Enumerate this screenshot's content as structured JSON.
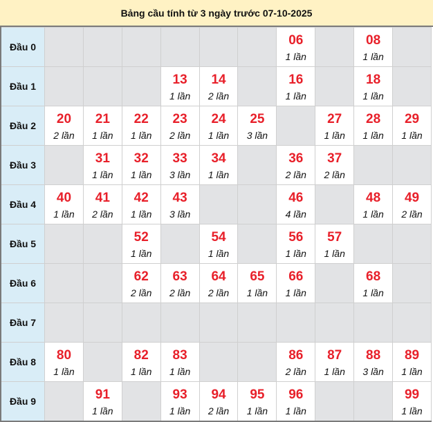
{
  "title": "Bảng cầu tính từ 3 ngày trước 07-10-2025",
  "colors": {
    "number": "#e8202a",
    "head_bg": "#d9edf7",
    "empty_bg": "#e2e3e5",
    "title_bg": "#fff2c4"
  },
  "rows": [
    {
      "label": "Đầu 0",
      "cells": [
        null,
        null,
        null,
        null,
        null,
        null,
        {
          "num": "06",
          "count": "1 lần"
        },
        null,
        {
          "num": "08",
          "count": "1 lần"
        },
        null
      ]
    },
    {
      "label": "Đầu 1",
      "cells": [
        null,
        null,
        null,
        {
          "num": "13",
          "count": "1 lần"
        },
        {
          "num": "14",
          "count": "2 lần"
        },
        null,
        {
          "num": "16",
          "count": "1 lần"
        },
        null,
        {
          "num": "18",
          "count": "1 lần"
        },
        null
      ]
    },
    {
      "label": "Đầu 2",
      "cells": [
        {
          "num": "20",
          "count": "2 lần"
        },
        {
          "num": "21",
          "count": "1 lần"
        },
        {
          "num": "22",
          "count": "1 lần"
        },
        {
          "num": "23",
          "count": "2 lần"
        },
        {
          "num": "24",
          "count": "1 lần"
        },
        {
          "num": "25",
          "count": "3 lần"
        },
        null,
        {
          "num": "27",
          "count": "1 lần"
        },
        {
          "num": "28",
          "count": "1 lần"
        },
        {
          "num": "29",
          "count": "1 lần"
        }
      ]
    },
    {
      "label": "Đầu 3",
      "cells": [
        null,
        {
          "num": "31",
          "count": "1 lần"
        },
        {
          "num": "32",
          "count": "1 lần"
        },
        {
          "num": "33",
          "count": "3 lần"
        },
        {
          "num": "34",
          "count": "1 lần"
        },
        null,
        {
          "num": "36",
          "count": "2 lần"
        },
        {
          "num": "37",
          "count": "2 lần"
        },
        null,
        null
      ]
    },
    {
      "label": "Đầu 4",
      "cells": [
        {
          "num": "40",
          "count": "1 lần"
        },
        {
          "num": "41",
          "count": "2 lần"
        },
        {
          "num": "42",
          "count": "1 lần"
        },
        {
          "num": "43",
          "count": "3 lần"
        },
        null,
        null,
        {
          "num": "46",
          "count": "4 lần"
        },
        null,
        {
          "num": "48",
          "count": "1 lần"
        },
        {
          "num": "49",
          "count": "2 lần"
        }
      ]
    },
    {
      "label": "Đầu 5",
      "cells": [
        null,
        null,
        {
          "num": "52",
          "count": "1 lần"
        },
        null,
        {
          "num": "54",
          "count": "1 lần"
        },
        null,
        {
          "num": "56",
          "count": "1 lần"
        },
        {
          "num": "57",
          "count": "1 lần"
        },
        null,
        null
      ]
    },
    {
      "label": "Đầu 6",
      "cells": [
        null,
        null,
        {
          "num": "62",
          "count": "2 lần"
        },
        {
          "num": "63",
          "count": "2 lần"
        },
        {
          "num": "64",
          "count": "2 lần"
        },
        {
          "num": "65",
          "count": "1 lần"
        },
        {
          "num": "66",
          "count": "1 lần"
        },
        null,
        {
          "num": "68",
          "count": "1 lần"
        },
        null
      ]
    },
    {
      "label": "Đầu 7",
      "cells": [
        null,
        null,
        null,
        null,
        null,
        null,
        null,
        null,
        null,
        null
      ]
    },
    {
      "label": "Đầu 8",
      "cells": [
        {
          "num": "80",
          "count": "1 lần"
        },
        null,
        {
          "num": "82",
          "count": "1 lần"
        },
        {
          "num": "83",
          "count": "1 lần"
        },
        null,
        null,
        {
          "num": "86",
          "count": "2 lần"
        },
        {
          "num": "87",
          "count": "1 lần"
        },
        {
          "num": "88",
          "count": "3 lần"
        },
        {
          "num": "89",
          "count": "1 lần"
        }
      ]
    },
    {
      "label": "Đầu 9",
      "cells": [
        null,
        {
          "num": "91",
          "count": "1 lần"
        },
        null,
        {
          "num": "93",
          "count": "1 lần"
        },
        {
          "num": "94",
          "count": "2 lần"
        },
        {
          "num": "95",
          "count": "1 lần"
        },
        {
          "num": "96",
          "count": "1 lần"
        },
        null,
        null,
        {
          "num": "99",
          "count": "1 lần"
        }
      ]
    }
  ]
}
